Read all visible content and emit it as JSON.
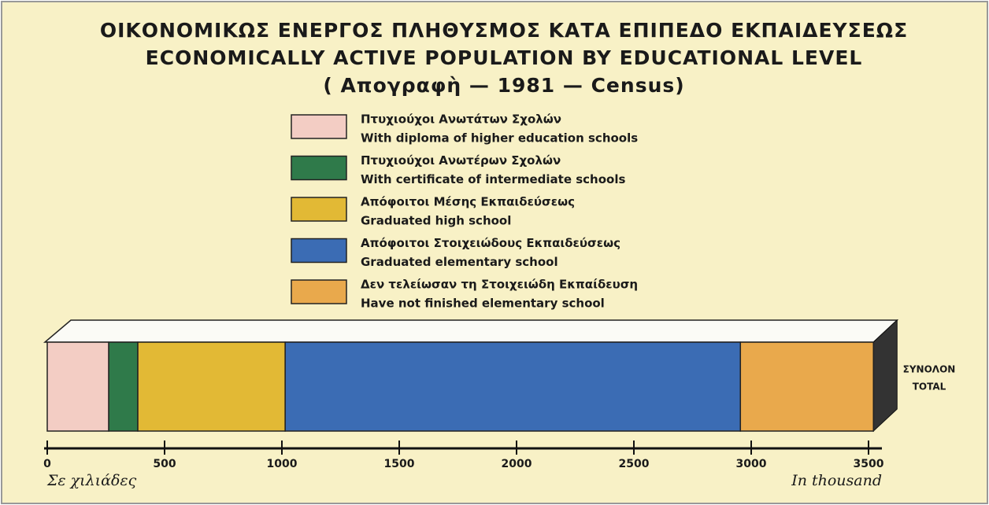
{
  "chart_data": {
    "type": "stacked-bar-horizontal",
    "title": [
      "ΟΙΚΟΝΟΜΙΚΩΣ ΕΝΕΡΓΟΣ ΠΛΗΘΥΣΜΟΣ ΚΑΤΑ ΕΠΙΠΕΔΟ ΕΚΠΑΙΔΕΥΣΕΩΣ",
      "ECONOMICALLY ACTIVE POPULATION BY EDUCATIONAL LEVEL",
      "( Απογραφὴ — 1981 — Census)"
    ],
    "categories": [
      [
        "ΣΥΝΟΛΟΝ",
        "TOTAL"
      ]
    ],
    "series": [
      {
        "name": [
          "Πτυχιούχοι Ανωτάτων Σχολών",
          "With diploma of higher education schools"
        ],
        "color": "#f3cdc4",
        "values": [
          262
        ]
      },
      {
        "name": [
          "Πτυχιούχοι Ανωτέρων Σχολών",
          "With certificate of intermediate schools"
        ],
        "color": "#2f7a4a",
        "values": [
          124
        ]
      },
      {
        "name": [
          "Απόφοιτοι Μέσης Εκπαιδεύσεως",
          "Graduated high school"
        ],
        "color": "#e2b935",
        "values": [
          628
        ]
      },
      {
        "name": [
          "Απόφοιτοι Στοιχειώδους Εκπαιδεύσεως",
          "Graduated elementary school"
        ],
        "color": "#3b6cb4",
        "values": [
          1940
        ]
      },
      {
        "name": [
          "Δεν τελείωσαν τη Στοιχειώδη Εκπαίδευση",
          "Have not finished elementary school"
        ],
        "color": "#e9a94c",
        "values": [
          567
        ]
      }
    ],
    "xlabel_left": "Σε χιλιάδες",
    "xlabel_right": "In thousand",
    "xlim": [
      0,
      3500
    ],
    "xticks": [
      0,
      500,
      1000,
      1500,
      2000,
      2500,
      3000,
      3500
    ]
  }
}
